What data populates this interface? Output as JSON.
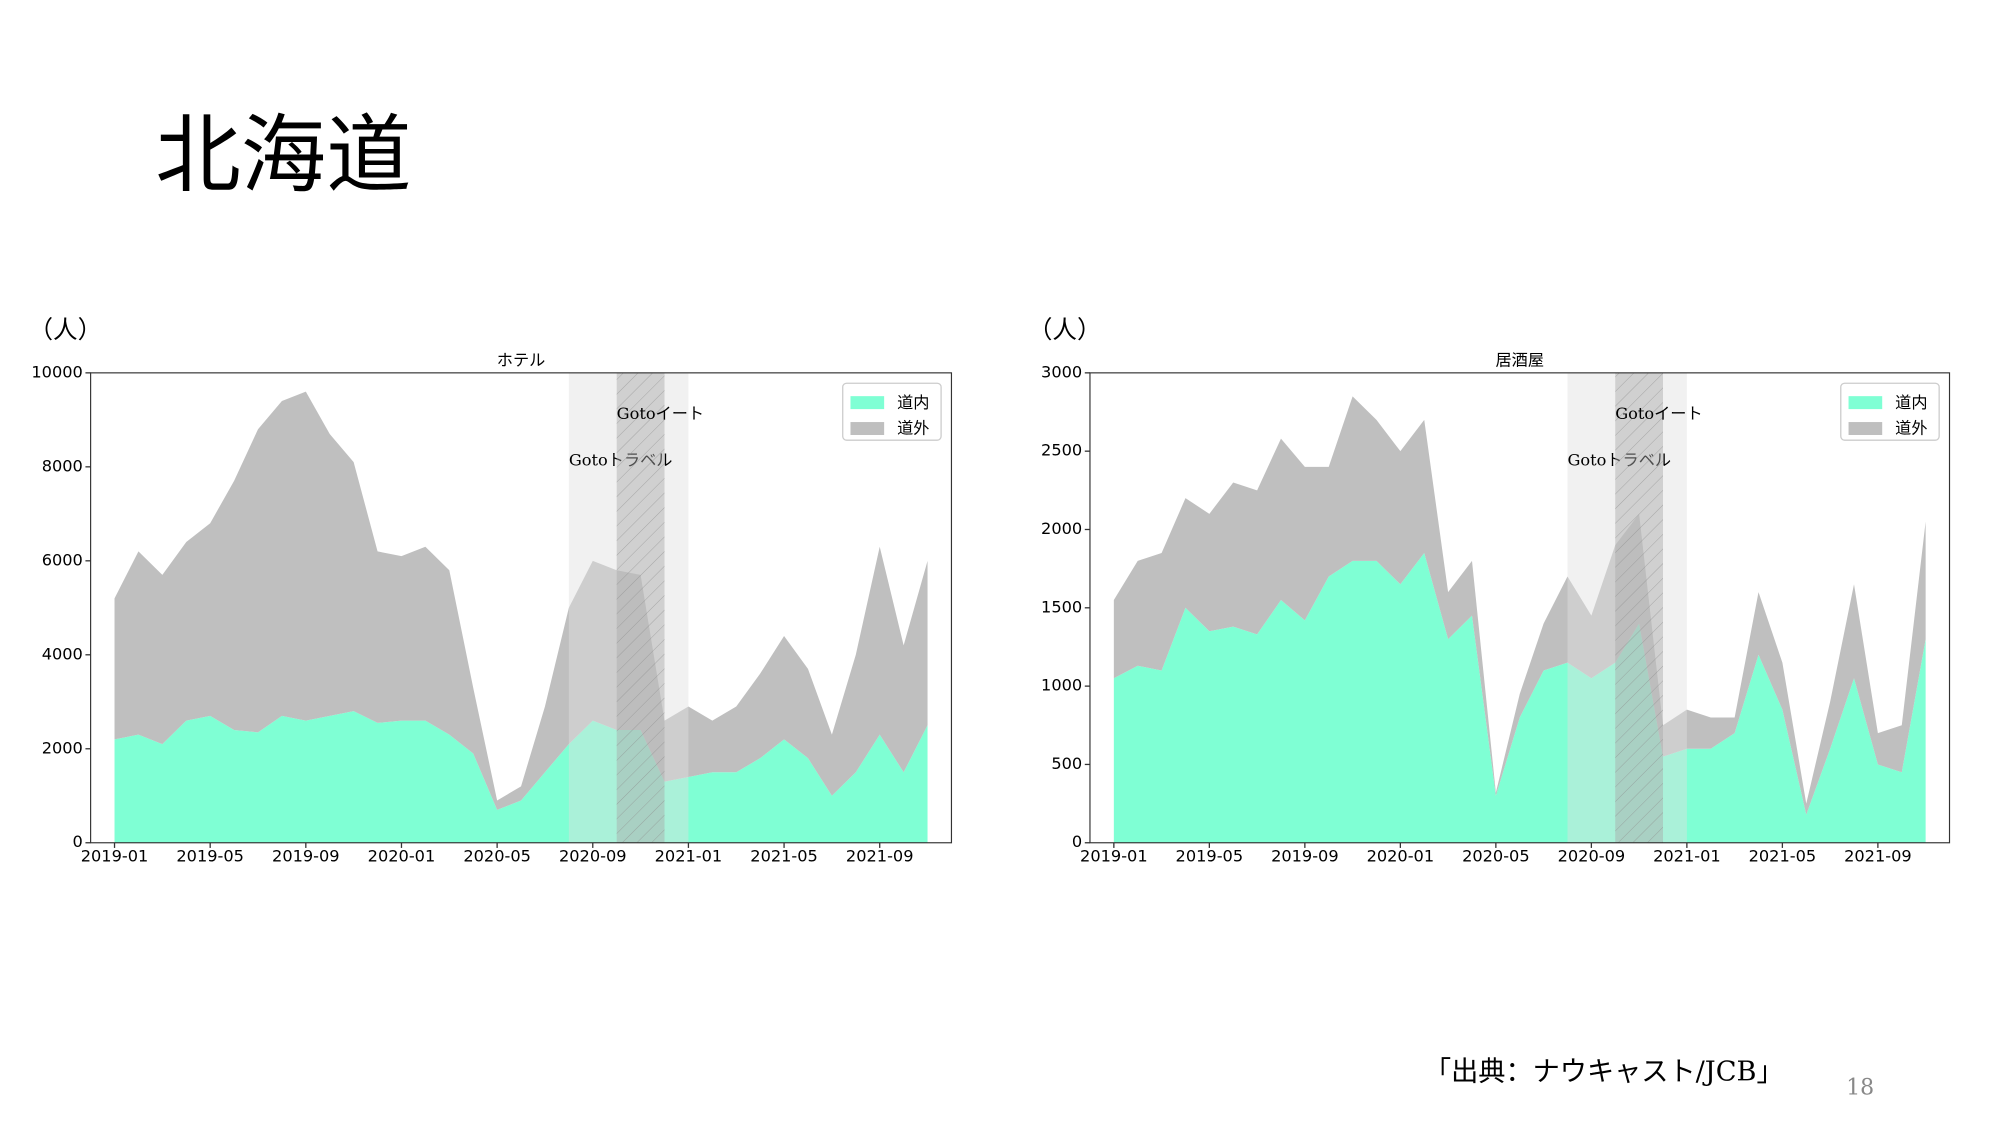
{
  "title": "北海道",
  "source": "「出典：ナウキャスト/JCB」",
  "page_number": "18",
  "chart_data": [
    {
      "type": "area",
      "stacked": true,
      "title": "ホテル",
      "unit_label": "（人）",
      "x": [
        "2019-01",
        "2019-02",
        "2019-03",
        "2019-04",
        "2019-05",
        "2019-06",
        "2019-07",
        "2019-08",
        "2019-09",
        "2019-10",
        "2019-11",
        "2019-12",
        "2020-01",
        "2020-02",
        "2020-03",
        "2020-04",
        "2020-05",
        "2020-06",
        "2020-07",
        "2020-08",
        "2020-09",
        "2020-10",
        "2020-11",
        "2020-12",
        "2021-01",
        "2021-02",
        "2021-03",
        "2021-04",
        "2021-05",
        "2021-06",
        "2021-07",
        "2021-08",
        "2021-09",
        "2021-10",
        "2021-11"
      ],
      "series": [
        {
          "name": "道内",
          "color": "#7fffd4",
          "values": [
            2200,
            2300,
            2100,
            2600,
            2700,
            2400,
            2350,
            2700,
            2600,
            2700,
            2800,
            2550,
            2600,
            2600,
            2300,
            1900,
            700,
            900,
            1500,
            2100,
            2600,
            2400,
            2400,
            1300,
            1400,
            1500,
            1500,
            1800,
            2200,
            1800,
            1000,
            1500,
            2300,
            1500,
            2500
          ]
        },
        {
          "name": "道外",
          "color": "#bfbfbf",
          "values": [
            3000,
            3900,
            3600,
            3800,
            4100,
            5300,
            6450,
            6700,
            7000,
            6000,
            5300,
            3650,
            3500,
            3700,
            3500,
            1400,
            200,
            300,
            1400,
            2900,
            3400,
            3400,
            3300,
            1300,
            1500,
            1100,
            1400,
            1800,
            2200,
            1900,
            1300,
            2500,
            4000,
            2700,
            3500
          ]
        }
      ],
      "xlim": [
        "2018-12",
        "2021-12"
      ],
      "xticks": [
        "2019-01",
        "2019-05",
        "2019-09",
        "2020-01",
        "2020-05",
        "2020-09",
        "2021-01",
        "2021-05",
        "2021-09"
      ],
      "ylim": [
        0,
        10000
      ],
      "yticks": [
        0,
        2000,
        4000,
        6000,
        8000,
        10000
      ],
      "legend": "upper right",
      "spans": [
        {
          "label": "Gotoトラベル",
          "start": "2020-08",
          "end": "2021-01",
          "color": "#e0e0e0",
          "hatch": false
        },
        {
          "label": "Gotoイート",
          "start": "2020-10",
          "end": "2020-12",
          "color": "#a8a8a8",
          "hatch": true
        }
      ]
    },
    {
      "type": "area",
      "stacked": true,
      "title": "居酒屋",
      "unit_label": "（人）",
      "x": [
        "2019-01",
        "2019-02",
        "2019-03",
        "2019-04",
        "2019-05",
        "2019-06",
        "2019-07",
        "2019-08",
        "2019-09",
        "2019-10",
        "2019-11",
        "2019-12",
        "2020-01",
        "2020-02",
        "2020-03",
        "2020-04",
        "2020-05",
        "2020-06",
        "2020-07",
        "2020-08",
        "2020-09",
        "2020-10",
        "2020-11",
        "2020-12",
        "2021-01",
        "2021-02",
        "2021-03",
        "2021-04",
        "2021-05",
        "2021-06",
        "2021-07",
        "2021-08",
        "2021-09",
        "2021-10",
        "2021-11"
      ],
      "series": [
        {
          "name": "道内",
          "color": "#7fffd4",
          "values": [
            1050,
            1130,
            1100,
            1500,
            1350,
            1380,
            1330,
            1550,
            1420,
            1700,
            1800,
            1800,
            1650,
            1850,
            1300,
            1450,
            300,
            800,
            1100,
            1150,
            1050,
            1150,
            1400,
            550,
            600,
            600,
            700,
            1200,
            850,
            180,
            600,
            1050,
            500,
            450,
            1300
          ]
        },
        {
          "name": "道外",
          "color": "#bfbfbf",
          "values": [
            500,
            670,
            750,
            700,
            750,
            920,
            920,
            1030,
            980,
            700,
            1050,
            900,
            850,
            850,
            300,
            350,
            20,
            150,
            300,
            550,
            400,
            750,
            700,
            200,
            250,
            200,
            100,
            400,
            300,
            70,
            300,
            600,
            200,
            300,
            750
          ]
        }
      ],
      "xlim": [
        "2018-12",
        "2021-12"
      ],
      "xticks": [
        "2019-01",
        "2019-05",
        "2019-09",
        "2020-01",
        "2020-05",
        "2020-09",
        "2021-01",
        "2021-05",
        "2021-09"
      ],
      "ylim": [
        0,
        3000
      ],
      "yticks": [
        0,
        500,
        1000,
        1500,
        2000,
        2500,
        3000
      ],
      "legend": "upper right",
      "spans": [
        {
          "label": "Gotoトラベル",
          "start": "2020-08",
          "end": "2021-01",
          "color": "#e0e0e0",
          "hatch": false
        },
        {
          "label": "Gotoイート",
          "start": "2020-10",
          "end": "2020-12",
          "color": "#a8a8a8",
          "hatch": true
        }
      ]
    }
  ]
}
